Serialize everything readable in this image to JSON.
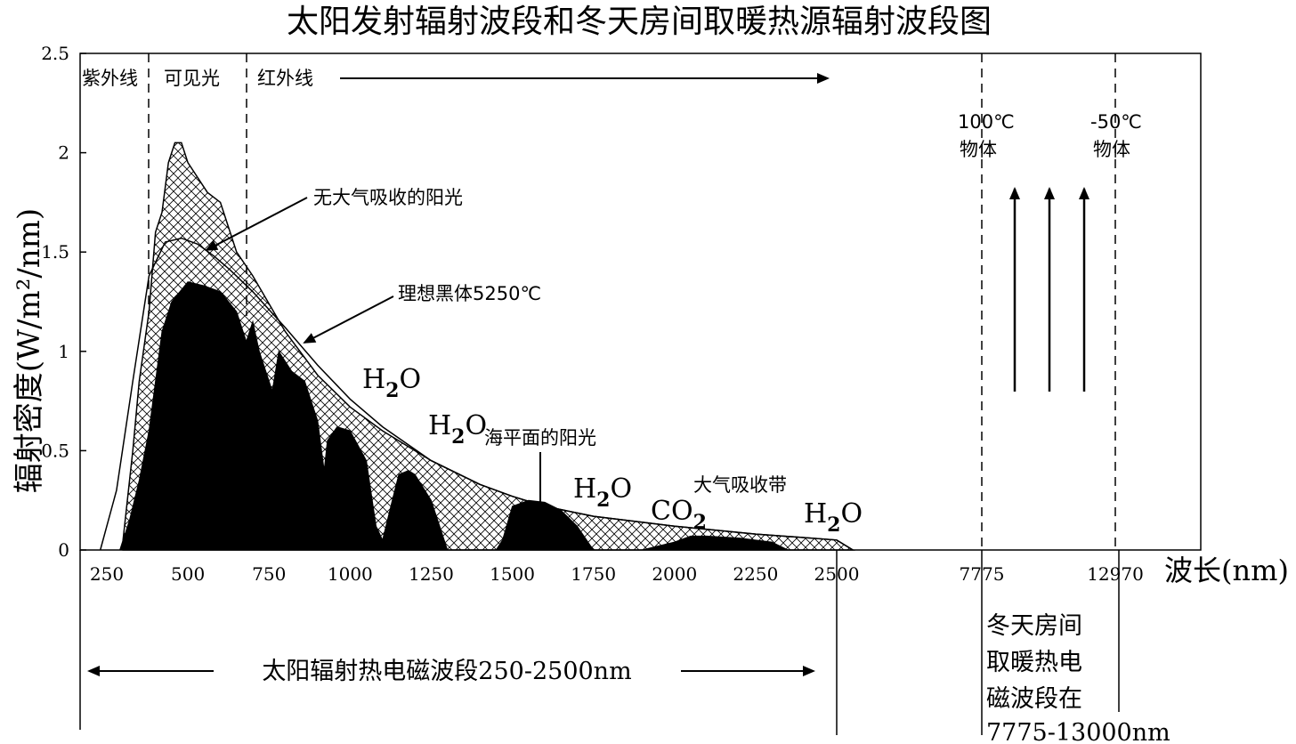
{
  "chart_data": {
    "type": "area",
    "title": "太阳发射辐射波段和冬天房间取暖热源辐射波段图",
    "xlabel": "波长(nm)",
    "ylabel": "辐射密度(W/m²/nm)",
    "ylim": [
      0,
      2.5
    ],
    "y_ticks": [
      "0",
      "0.5",
      "1",
      "1.5",
      "2",
      "2.5"
    ],
    "x_ticks": [
      "250",
      "500",
      "750",
      "1000",
      "1250",
      "1500",
      "1750",
      "2000",
      "2250",
      "2500",
      "7775",
      "12970"
    ],
    "grid": false,
    "bands": {
      "uv": "紫外线",
      "visible": "可见光",
      "infrared": "红外线"
    },
    "band_boundaries_nm": [
      400,
      700
    ],
    "series": [
      {
        "name": "理想黑体5250℃",
        "x": [
          230,
          280,
          330,
          380,
          430,
          480,
          530,
          580,
          630,
          700,
          800,
          900,
          1000,
          1100,
          1250,
          1400,
          1500,
          1600,
          1750,
          2000,
          2250,
          2500,
          2550
        ],
        "values": [
          0.0,
          0.3,
          0.85,
          1.38,
          1.55,
          1.57,
          1.54,
          1.48,
          1.41,
          1.3,
          1.12,
          0.93,
          0.76,
          0.62,
          0.45,
          0.33,
          0.27,
          0.22,
          0.17,
          0.12,
          0.08,
          0.05,
          0.0
        ]
      },
      {
        "name": "无大气吸收的阳光",
        "x": [
          300,
          330,
          350,
          380,
          400,
          420,
          440,
          460,
          480,
          500,
          520,
          560,
          600,
          650,
          700,
          800,
          900,
          1000,
          1100,
          1250,
          1400,
          1500,
          1600,
          1750,
          2000,
          2250,
          2500,
          2550
        ],
        "values": [
          0.05,
          0.5,
          0.85,
          1.2,
          1.6,
          1.7,
          1.95,
          2.05,
          2.05,
          1.95,
          1.9,
          1.8,
          1.75,
          1.5,
          1.38,
          1.1,
          0.88,
          0.72,
          0.6,
          0.45,
          0.33,
          0.27,
          0.22,
          0.17,
          0.12,
          0.08,
          0.05,
          0.0
        ]
      },
      {
        "name": "海平面的阳光",
        "x": [
          290,
          320,
          350,
          380,
          400,
          420,
          450,
          500,
          550,
          600,
          650,
          680,
          700,
          720,
          760,
          780,
          820,
          860,
          900,
          920,
          930,
          960,
          1000,
          1050,
          1080,
          1100,
          1130,
          1150,
          1180,
          1200,
          1250,
          1280,
          1300,
          1310,
          1350,
          1400,
          1450,
          1470,
          1500,
          1550,
          1600,
          1650,
          1700,
          1750,
          1800,
          1900,
          1950,
          2000,
          2050,
          2100,
          2200,
          2300,
          2350
        ],
        "values": [
          0.0,
          0.15,
          0.35,
          0.6,
          0.85,
          1.1,
          1.25,
          1.35,
          1.33,
          1.3,
          1.2,
          1.05,
          1.15,
          1.0,
          0.8,
          1.0,
          0.9,
          0.85,
          0.65,
          0.4,
          0.55,
          0.62,
          0.6,
          0.45,
          0.12,
          0.05,
          0.25,
          0.38,
          0.4,
          0.38,
          0.25,
          0.1,
          0.0,
          0.0,
          0.0,
          0.0,
          0.0,
          0.05,
          0.22,
          0.25,
          0.24,
          0.2,
          0.12,
          0.0,
          0.0,
          0.0,
          0.02,
          0.04,
          0.07,
          0.07,
          0.06,
          0.04,
          0.0
        ]
      }
    ],
    "annotations": {
      "sun_no_atm": "无大气吸收的阳光",
      "blackbody": "理想黑体5250℃",
      "sea_level": "海平面的阳光",
      "absorption_band": "大气吸收带",
      "h2o": "H",
      "sub2": "2",
      "o": "O",
      "co": "CO",
      "obj_100_line1": "100℃",
      "obj_100_line2": "物体",
      "obj_m50_line1": "-50℃",
      "obj_m50_line2": "物体",
      "solar_band": "太阳辐射热电磁波段250-2500nm",
      "room_band_lines": [
        "冬天房间",
        "取暖热电",
        "磁波段在",
        "7775-13000nm"
      ]
    }
  }
}
